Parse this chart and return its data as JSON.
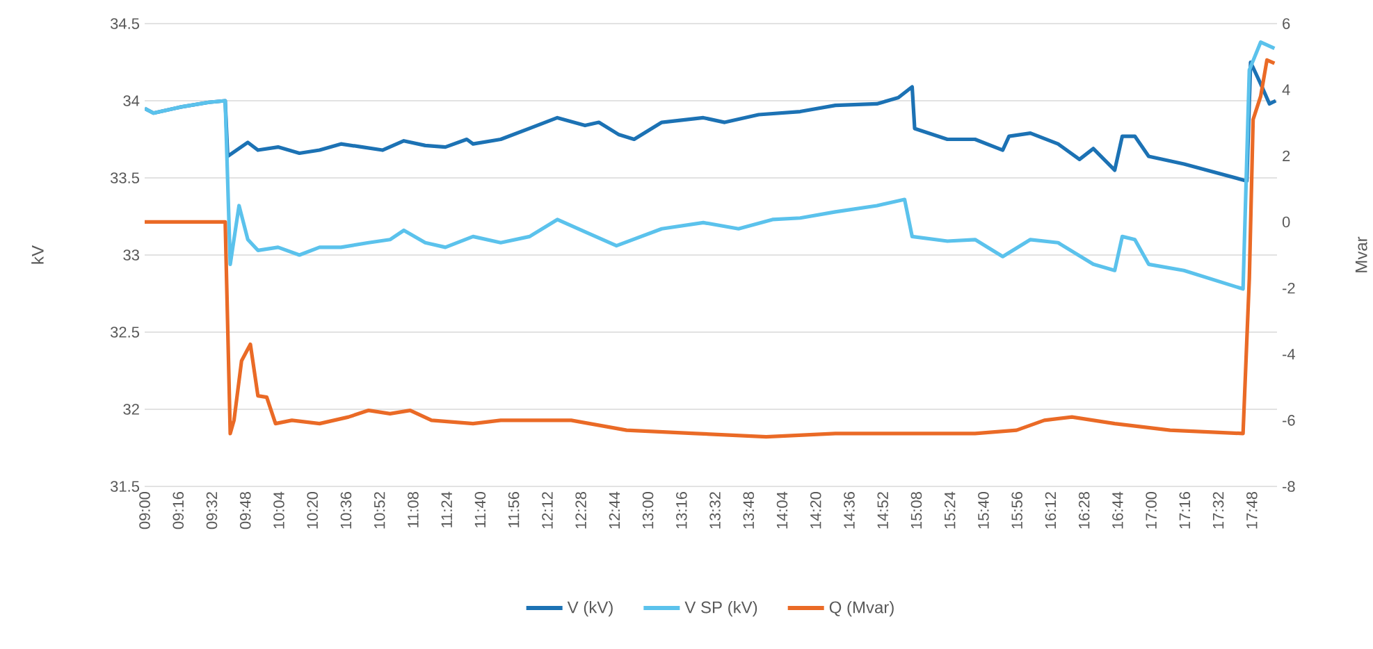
{
  "chart_data": {
    "type": "line",
    "ylabel": "kV",
    "y2label": "Mvar",
    "xlim": [
      9,
      18
    ],
    "ylim": [
      31.5,
      34.5
    ],
    "yticks": [
      31.5,
      32,
      32.5,
      33,
      33.5,
      34,
      34.5
    ],
    "y2lim": [
      -8,
      6
    ],
    "y2ticks": [
      -8,
      -6,
      -4,
      -2,
      0,
      2,
      4,
      6
    ],
    "xticks": [
      {
        "value": 9,
        "label": "09:00"
      },
      {
        "value": 9.2667,
        "label": "09:16"
      },
      {
        "value": 9.5333,
        "label": "09:32"
      },
      {
        "value": 9.8,
        "label": "09:48"
      },
      {
        "value": 10.0667,
        "label": "10:04"
      },
      {
        "value": 10.3333,
        "label": "10:20"
      },
      {
        "value": 10.6,
        "label": "10:36"
      },
      {
        "value": 10.8667,
        "label": "10:52"
      },
      {
        "value": 11.1333,
        "label": "11:08"
      },
      {
        "value": 11.4,
        "label": "11:24"
      },
      {
        "value": 11.6667,
        "label": "11:40"
      },
      {
        "value": 11.9333,
        "label": "11:56"
      },
      {
        "value": 12.2,
        "label": "12:12"
      },
      {
        "value": 12.4667,
        "label": "12:28"
      },
      {
        "value": 12.7333,
        "label": "12:44"
      },
      {
        "value": 13,
        "label": "13:00"
      },
      {
        "value": 13.2667,
        "label": "13:16"
      },
      {
        "value": 13.5333,
        "label": "13:32"
      },
      {
        "value": 13.8,
        "label": "13:48"
      },
      {
        "value": 14.0667,
        "label": "14:04"
      },
      {
        "value": 14.3333,
        "label": "14:20"
      },
      {
        "value": 14.6,
        "label": "14:36"
      },
      {
        "value": 14.8667,
        "label": "14:52"
      },
      {
        "value": 15.1333,
        "label": "15:08"
      },
      {
        "value": 15.4,
        "label": "15:24"
      },
      {
        "value": 15.6667,
        "label": "15:40"
      },
      {
        "value": 15.9333,
        "label": "15:56"
      },
      {
        "value": 16.2,
        "label": "16:12"
      },
      {
        "value": 16.4667,
        "label": "16:28"
      },
      {
        "value": 16.7333,
        "label": "16:44"
      },
      {
        "value": 17,
        "label": "17:00"
      },
      {
        "value": 17.2667,
        "label": "17:16"
      },
      {
        "value": 17.5333,
        "label": "17:32"
      },
      {
        "value": 17.8,
        "label": "17:48"
      }
    ],
    "grid": "y",
    "legend": "bottom",
    "line_style": "solid",
    "series": [
      {
        "name": "V (kV)",
        "color": "#1c72b4",
        "x": [
          9.0,
          9.07,
          9.29,
          9.51,
          9.64,
          9.66,
          9.73,
          9.82,
          9.9,
          10.06,
          10.23,
          10.39,
          10.56,
          10.73,
          10.89,
          11.06,
          11.23,
          11.39,
          11.56,
          11.61,
          11.83,
          12.28,
          12.5,
          12.61,
          12.77,
          12.89,
          13.11,
          13.44,
          13.61,
          13.88,
          14.21,
          14.49,
          14.82,
          14.99,
          15.1,
          15.12,
          15.38,
          15.6,
          15.82,
          15.87,
          16.04,
          16.26,
          16.43,
          16.54,
          16.71,
          16.77,
          16.87,
          16.98,
          17.26,
          17.76,
          17.79,
          17.87,
          17.94,
          17.99
        ],
        "values": [
          33.95,
          33.92,
          33.96,
          33.99,
          34.0,
          33.64,
          33.68,
          33.73,
          33.68,
          33.7,
          33.66,
          33.68,
          33.72,
          33.7,
          33.68,
          33.74,
          33.71,
          33.7,
          33.75,
          33.72,
          33.75,
          33.89,
          33.84,
          33.86,
          33.78,
          33.75,
          33.86,
          33.89,
          33.86,
          33.91,
          33.93,
          33.97,
          33.98,
          34.02,
          34.09,
          33.82,
          33.75,
          33.75,
          33.68,
          33.77,
          33.79,
          33.72,
          33.62,
          33.69,
          33.55,
          33.77,
          33.77,
          33.64,
          33.59,
          33.48,
          34.25,
          34.11,
          33.98,
          34.0
        ]
      },
      {
        "name": "V SP (kV)",
        "color": "#5bc2ec",
        "x": [
          9.0,
          9.07,
          9.29,
          9.51,
          9.64,
          9.68,
          9.75,
          9.82,
          9.9,
          10.06,
          10.23,
          10.39,
          10.56,
          10.78,
          10.95,
          11.06,
          11.23,
          11.39,
          11.61,
          11.83,
          12.06,
          12.28,
          12.5,
          12.75,
          13.11,
          13.44,
          13.72,
          13.99,
          14.21,
          14.49,
          14.82,
          15.04,
          15.1,
          15.38,
          15.6,
          15.82,
          16.04,
          16.26,
          16.54,
          16.71,
          16.77,
          16.87,
          16.98,
          17.26,
          17.73,
          17.78,
          17.87,
          17.98
        ],
        "values": [
          33.95,
          33.92,
          33.96,
          33.99,
          34.0,
          32.94,
          33.32,
          33.1,
          33.03,
          33.05,
          33.0,
          33.05,
          33.05,
          33.08,
          33.1,
          33.16,
          33.08,
          33.05,
          33.12,
          33.08,
          33.12,
          33.23,
          33.15,
          33.06,
          33.17,
          33.21,
          33.17,
          33.23,
          33.24,
          33.28,
          33.32,
          33.36,
          33.12,
          33.09,
          33.1,
          32.99,
          33.1,
          33.08,
          32.94,
          32.9,
          33.12,
          33.1,
          32.94,
          32.9,
          32.78,
          34.2,
          34.38,
          34.34
        ]
      },
      {
        "name": "Q (Mvar)",
        "color": "#ea6a26",
        "axis": "y2",
        "x": [
          9.0,
          9.64,
          9.68,
          9.71,
          9.77,
          9.84,
          9.9,
          9.97,
          10.04,
          10.17,
          10.39,
          10.62,
          10.78,
          10.95,
          11.11,
          11.28,
          11.61,
          11.83,
          12.39,
          12.83,
          13.38,
          13.94,
          14.49,
          15.04,
          15.6,
          15.93,
          16.15,
          16.37,
          16.71,
          17.15,
          17.73,
          17.78,
          17.81,
          17.87,
          17.92,
          17.98
        ],
        "values": [
          0,
          0,
          -6.4,
          -6.0,
          -4.2,
          -3.7,
          -5.26,
          -5.3,
          -6.1,
          -6.0,
          -6.1,
          -5.9,
          -5.7,
          -5.8,
          -5.7,
          -6.0,
          -6.1,
          -6.0,
          -6.0,
          -6.3,
          -6.4,
          -6.5,
          -6.4,
          -6.4,
          -6.4,
          -6.3,
          -6.0,
          -5.9,
          -6.1,
          -6.3,
          -6.4,
          -1.7,
          3.1,
          3.8,
          4.9,
          4.8
        ]
      }
    ]
  }
}
